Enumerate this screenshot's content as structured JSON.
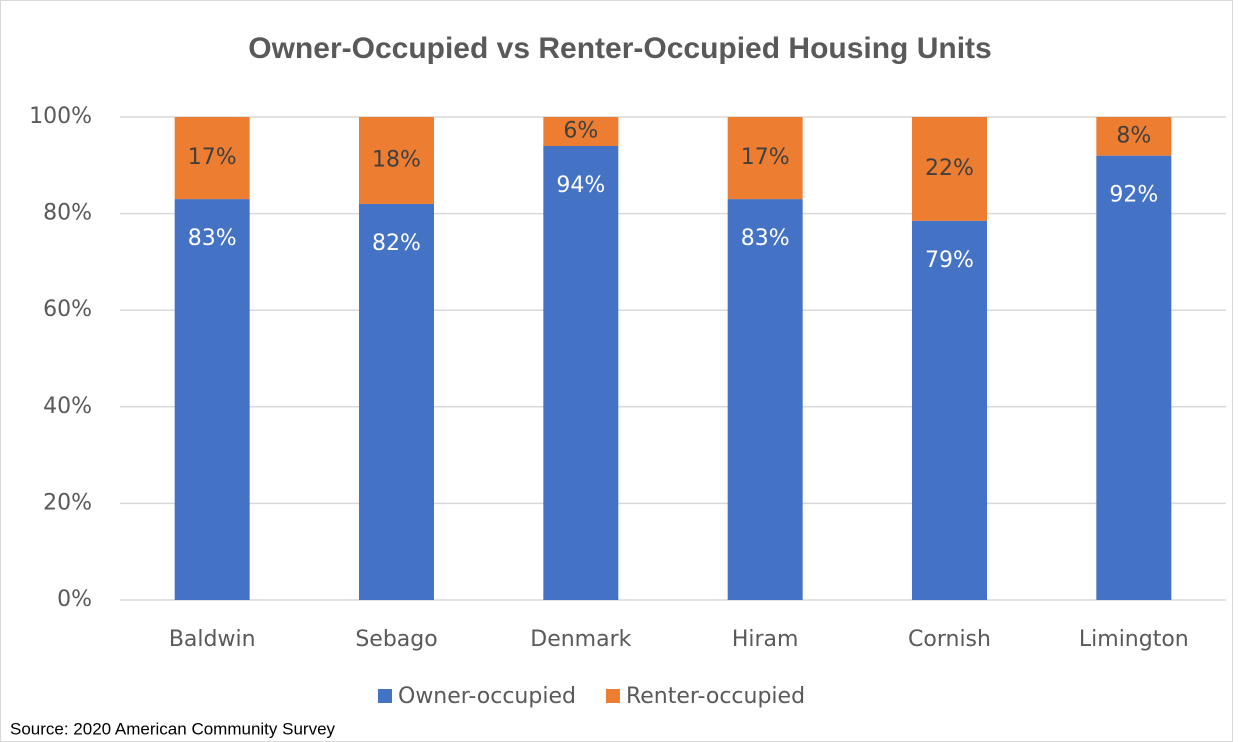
{
  "chart_data": {
    "type": "stacked_bar",
    "title": "Owner-Occupied vs Renter-Occupied Housing Units",
    "categories": [
      "Baldwin",
      "Sebago",
      "Denmark",
      "Hiram",
      "Cornish",
      "Limington"
    ],
    "series": [
      {
        "name": "Owner-occupied",
        "color": "#4472c4",
        "values": [
          83,
          82,
          94,
          83,
          78.5,
          92
        ],
        "value_labels": [
          "83%",
          "82%",
          "94%",
          "83%",
          "79%",
          "92%"
        ]
      },
      {
        "name": "Renter-occupied",
        "color": "#ed7d31",
        "values": [
          17,
          18,
          6,
          17,
          21.5,
          8
        ],
        "value_labels": [
          "17%",
          "18%",
          "6%",
          "17%",
          "22%",
          "8%"
        ]
      }
    ],
    "ylim": [
      0,
      100
    ],
    "yticks": [
      {
        "value": 0,
        "label": "0%"
      },
      {
        "value": 20,
        "label": "20%"
      },
      {
        "value": 40,
        "label": "40%"
      },
      {
        "value": 60,
        "label": "60%"
      },
      {
        "value": 80,
        "label": "80%"
      },
      {
        "value": 100,
        "label": "100%"
      }
    ],
    "grid": true,
    "legend": "bottom",
    "source": "Source: 2020  American Community Survey"
  }
}
